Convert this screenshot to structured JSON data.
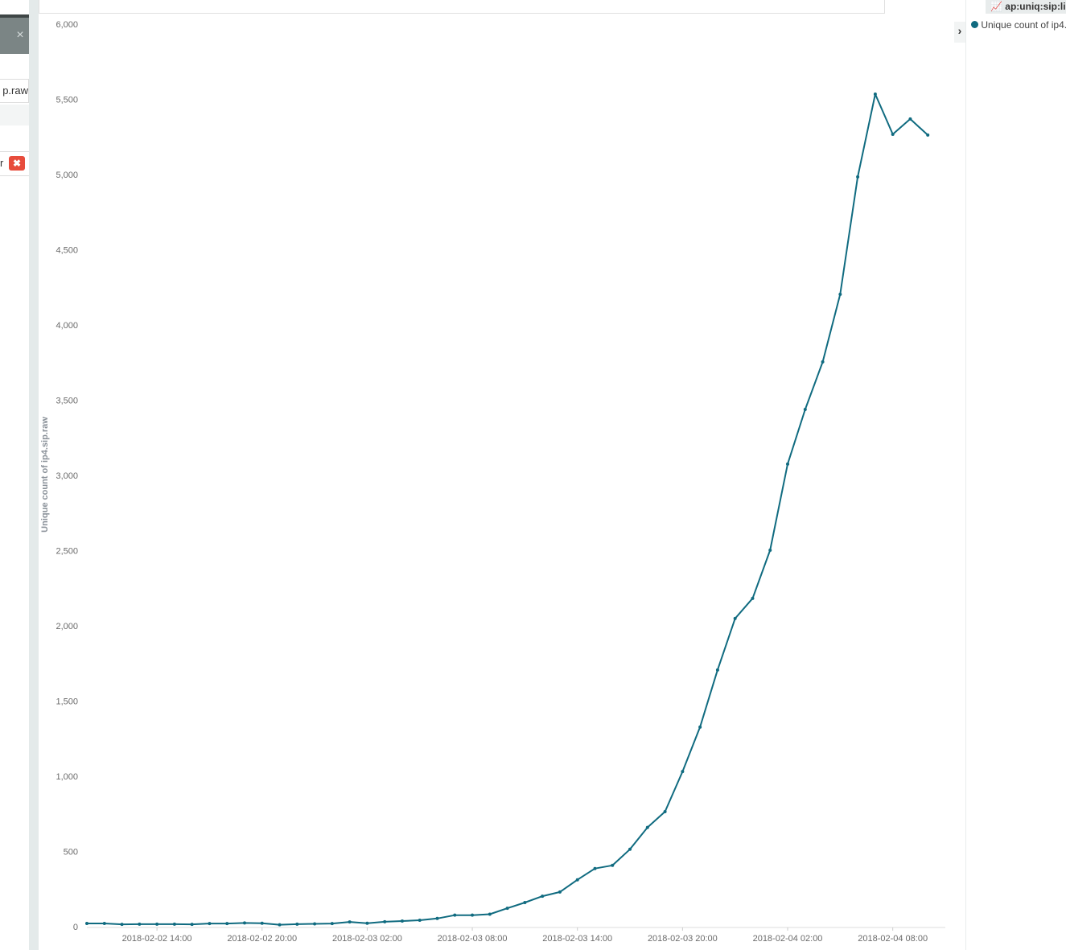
{
  "ui": {
    "field_fragment": "p.raw",
    "item_fragment": "r"
  },
  "legend_title": "ap:uniq:sip:li",
  "chart_data": {
    "type": "line",
    "y_label": "Unique count of ip4.sip.raw",
    "x": [
      "2018-02-02 10:00",
      "2018-02-02 11:00",
      "2018-02-02 12:00",
      "2018-02-02 13:00",
      "2018-02-02 14:00",
      "2018-02-02 15:00",
      "2018-02-02 16:00",
      "2018-02-02 17:00",
      "2018-02-02 18:00",
      "2018-02-02 19:00",
      "2018-02-02 20:00",
      "2018-02-02 21:00",
      "2018-02-02 22:00",
      "2018-02-02 23:00",
      "2018-02-03 00:00",
      "2018-02-03 01:00",
      "2018-02-03 02:00",
      "2018-02-03 03:00",
      "2018-02-03 04:00",
      "2018-02-03 05:00",
      "2018-02-03 06:00",
      "2018-02-03 07:00",
      "2018-02-03 08:00",
      "2018-02-03 09:00",
      "2018-02-03 10:00",
      "2018-02-03 11:00",
      "2018-02-03 12:00",
      "2018-02-03 13:00",
      "2018-02-03 14:00",
      "2018-02-03 15:00",
      "2018-02-03 16:00",
      "2018-02-03 17:00",
      "2018-02-03 18:00",
      "2018-02-03 19:00",
      "2018-02-03 20:00",
      "2018-02-03 21:00",
      "2018-02-03 22:00",
      "2018-02-03 23:00",
      "2018-02-04 00:00",
      "2018-02-04 01:00",
      "2018-02-04 02:00",
      "2018-02-04 03:00",
      "2018-02-04 04:00",
      "2018-02-04 05:00",
      "2018-02-04 06:00",
      "2018-02-04 07:00",
      "2018-02-04 08:00",
      "2018-02-04 09:00",
      "2018-02-04 10:00"
    ],
    "series": [
      {
        "name": "Unique count of ip4.",
        "color": "#106b80",
        "values": [
          27,
          27,
          21,
          22,
          22,
          22,
          21,
          26,
          26,
          30,
          28,
          18,
          22,
          24,
          26,
          37,
          28,
          38,
          43,
          48,
          60,
          82,
          82,
          88,
          128,
          166,
          208,
          236,
          317,
          392,
          413,
          520,
          665,
          770,
          1037,
          1332,
          1712,
          2054,
          2188,
          2508,
          3081,
          3444,
          3760,
          4209,
          4990,
          5540,
          5273,
          5375,
          5268
        ]
      }
    ],
    "xlim": [
      "2018-02-02 10:00",
      "2018-02-04 11:00"
    ],
    "xticks": [
      "2018-02-02 14:00",
      "2018-02-02 20:00",
      "2018-02-03 02:00",
      "2018-02-03 08:00",
      "2018-02-03 14:00",
      "2018-02-03 20:00",
      "2018-02-04 02:00",
      "2018-02-04 08:00"
    ],
    "ylim": [
      0,
      6000
    ],
    "yticks": [
      0,
      500,
      {
        "value": 1000,
        "label": "1,000"
      },
      {
        "value": 1500,
        "label": "1,500"
      },
      {
        "value": 2000,
        "label": "2,000"
      },
      {
        "value": 2500,
        "label": "2,500"
      },
      {
        "value": 3000,
        "label": "3,000"
      },
      {
        "value": 3500,
        "label": "3,500"
      },
      {
        "value": 4000,
        "label": "4,000"
      },
      {
        "value": 4500,
        "label": "4,500"
      },
      {
        "value": 5000,
        "label": "5,000"
      },
      {
        "value": 5500,
        "label": "5,500"
      },
      {
        "value": 6000,
        "label": "6,000"
      }
    ],
    "grid": false
  }
}
